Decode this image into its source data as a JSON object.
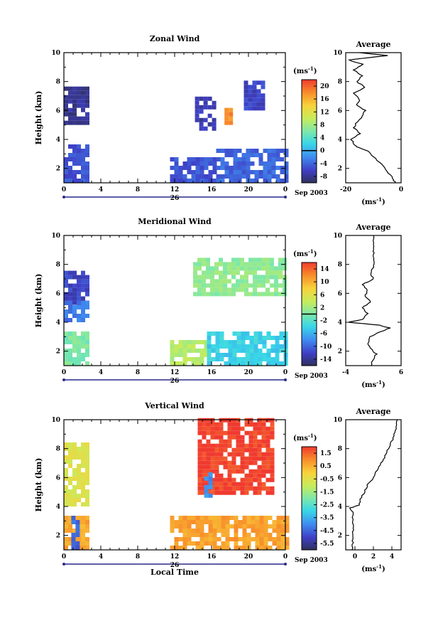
{
  "chart_data": [
    {
      "type": "heatmap",
      "title": "Zonal Wind",
      "ylabel": "Height (km)",
      "xlim": [
        0,
        24
      ],
      "ylim": [
        1,
        10
      ],
      "xticks": [
        "0",
        "4",
        "8",
        "12",
        "16",
        "20",
        "0"
      ],
      "xtick_values": [
        0,
        4,
        8,
        12,
        16,
        20,
        24
      ],
      "yticks": [
        "2",
        "4",
        "6",
        "8",
        "10"
      ],
      "ytick_values": [
        2,
        4,
        6,
        8,
        10
      ],
      "date_label": "26",
      "month_label": "Sep 2003",
      "colorbar": {
        "unit": "(ms",
        "unit_exp": "-1",
        "unit_close": ")",
        "ticks": [
          "20",
          "16",
          "12",
          "8",
          "4",
          "0",
          "-4",
          "-8"
        ],
        "tick_values": [
          20,
          16,
          12,
          8,
          4,
          0,
          -4,
          -8
        ],
        "range": [
          -10,
          22
        ],
        "zero_line": 0
      },
      "regions": [
        {
          "x": [
            0,
            2.6
          ],
          "y": [
            5.0,
            7.4
          ],
          "v": -8
        },
        {
          "x": [
            0,
            2.6
          ],
          "y": [
            1.0,
            3.4
          ],
          "v": -5
        },
        {
          "x": [
            11.5,
            16.5
          ],
          "y": [
            1.0,
            2.5
          ],
          "v": -5
        },
        {
          "x": [
            16.5,
            24
          ],
          "y": [
            1.0,
            3.2
          ],
          "v": -4
        },
        {
          "x": [
            14.2,
            16.2
          ],
          "y": [
            4.6,
            6.8
          ],
          "v": -7
        },
        {
          "x": [
            19.5,
            21.5
          ],
          "y": [
            6.0,
            7.8
          ],
          "v": -6
        },
        {
          "x": [
            17.4,
            17.9
          ],
          "y": [
            5.0,
            6.0
          ],
          "v": 18
        }
      ],
      "average": {
        "title": "Average",
        "xlabel": "(ms",
        "xlabel_exp": "-1",
        "xlabel_close": ")",
        "xticks": [
          "-20",
          "0"
        ],
        "xtick_values": [
          -20,
          0
        ],
        "xlim": [
          -20,
          0
        ],
        "yticks": [
          "2",
          "4",
          "6",
          "8",
          "10"
        ],
        "ytick_values": [
          2,
          4,
          6,
          8,
          10
        ],
        "profile_y": [
          1.0,
          1.3,
          1.8,
          2.3,
          2.8,
          3.2,
          3.5,
          3.7,
          4.0,
          4.4,
          4.8,
          5.2,
          5.6,
          6.0,
          6.4,
          6.8,
          7.2,
          7.6,
          8.0,
          8.4,
          8.8,
          9.2,
          9.5,
          9.8,
          10.0
        ],
        "profile_x": [
          -2,
          -3,
          -5,
          -7,
          -10,
          -12,
          -16,
          -17,
          -18,
          -15,
          -17,
          -16,
          -14,
          -13,
          -16,
          -15,
          -17,
          -13,
          -16,
          -14,
          -17,
          -14,
          -19,
          -5,
          -15
        ]
      }
    },
    {
      "type": "heatmap",
      "title": "Meridional Wind",
      "ylabel": "Height (km)",
      "xlim": [
        0,
        24
      ],
      "ylim": [
        1,
        10
      ],
      "xticks": [
        "0",
        "4",
        "8",
        "12",
        "16",
        "20",
        "0"
      ],
      "xtick_values": [
        0,
        4,
        8,
        12,
        16,
        20,
        24
      ],
      "yticks": [
        "2",
        "4",
        "6",
        "8",
        "10"
      ],
      "ytick_values": [
        2,
        4,
        6,
        8,
        10
      ],
      "date_label": "26",
      "month_label": "Sep 2003",
      "colorbar": {
        "unit": "(ms",
        "unit_exp": "-1",
        "unit_close": ")",
        "ticks": [
          "14",
          "10",
          "6",
          "2",
          "-2",
          "-6",
          "-10",
          "-14"
        ],
        "tick_values": [
          14,
          10,
          6,
          2,
          -2,
          -6,
          -10,
          -14
        ],
        "range": [
          -16,
          16
        ],
        "zero_line": 0
      },
      "regions": [
        {
          "x": [
            0,
            2.6
          ],
          "y": [
            5.2,
            7.4
          ],
          "v": -12
        },
        {
          "x": [
            0,
            2.6
          ],
          "y": [
            4.0,
            5.2
          ],
          "v": -9
        },
        {
          "x": [
            0,
            2.6
          ],
          "y": [
            1.0,
            3.3
          ],
          "v": 0
        },
        {
          "x": [
            11.5,
            15.5
          ],
          "y": [
            1.0,
            2.6
          ],
          "v": 3
        },
        {
          "x": [
            15.5,
            24
          ],
          "y": [
            1.0,
            3.2
          ],
          "v": -4
        },
        {
          "x": [
            14.0,
            24
          ],
          "y": [
            5.8,
            8.2
          ],
          "v": 1
        }
      ],
      "average": {
        "title": "Average",
        "xlabel": "(ms",
        "xlabel_exp": "-1",
        "xlabel_close": ")",
        "xticks": [
          "-4",
          "6"
        ],
        "xtick_values": [
          -4,
          6
        ],
        "xlim": [
          -4,
          6
        ],
        "yticks": [
          "2",
          "4",
          "6",
          "8",
          "10"
        ],
        "ytick_values": [
          2,
          4,
          6,
          8,
          10
        ],
        "profile_y": [
          1.0,
          1.4,
          1.8,
          2.2,
          2.6,
          3.0,
          3.3,
          3.6,
          3.8,
          4.0,
          4.2,
          4.6,
          5.0,
          5.4,
          5.8,
          6.2,
          6.6,
          7.0,
          7.4,
          7.8,
          8.2,
          8.6,
          9.0,
          9.5,
          10.0
        ],
        "profile_x": [
          0.5,
          1.0,
          1.5,
          0.5,
          0.0,
          0.5,
          2.0,
          4.0,
          2.0,
          -3.5,
          -1.0,
          0.0,
          -1.0,
          0.5,
          -0.5,
          0.0,
          -1.0,
          1.0,
          0.5,
          1.0,
          1.0,
          1.0,
          1.0,
          1.0,
          1.0
        ]
      }
    },
    {
      "type": "heatmap",
      "title": "Vertical Wind",
      "xlabel": "Local Time",
      "ylabel": "Height (km)",
      "xlim": [
        0,
        24
      ],
      "ylim": [
        1,
        10
      ],
      "xticks": [
        "0",
        "4",
        "8",
        "12",
        "16",
        "20",
        "0"
      ],
      "xtick_values": [
        0,
        4,
        8,
        12,
        16,
        20,
        24
      ],
      "yticks": [
        "2",
        "4",
        "6",
        "8",
        "10"
      ],
      "ytick_values": [
        2,
        4,
        6,
        8,
        10
      ],
      "date_label": "26",
      "month_label": "Sep 2003",
      "colorbar": {
        "unit": "(ms",
        "unit_exp": "-1",
        "unit_close": ")",
        "ticks": [
          "1.5",
          "0.5",
          "-0.5",
          "-1.5",
          "-2.5",
          "-3.5",
          "-4.5",
          "-5.5"
        ],
        "tick_values": [
          1.5,
          0.5,
          -0.5,
          -1.5,
          -2.5,
          -3.5,
          -4.5,
          -5.5
        ],
        "range": [
          -6,
          2
        ],
        "zero_line": null
      },
      "regions": [
        {
          "x": [
            0,
            2.6
          ],
          "y": [
            4.0,
            8.2
          ],
          "v": -0.6
        },
        {
          "x": [
            0,
            2.6
          ],
          "y": [
            1.0,
            3.3
          ],
          "v": 0.6
        },
        {
          "x": [
            0.8,
            1.3
          ],
          "y": [
            1.0,
            3.3
          ],
          "v": -4.5
        },
        {
          "x": [
            11.5,
            24
          ],
          "y": [
            1.0,
            3.2
          ],
          "v": 0.7
        },
        {
          "x": [
            14.5,
            22.5
          ],
          "y": [
            4.8,
            9.9
          ],
          "v": 1.9
        },
        {
          "x": [
            15.2,
            15.8
          ],
          "y": [
            4.6,
            6.2
          ],
          "v": -4
        }
      ],
      "average": {
        "title": "Average",
        "xlabel": "(ms",
        "xlabel_exp": "-1",
        "xlabel_close": ")",
        "xticks": [
          "0",
          "2",
          "4"
        ],
        "xtick_values": [
          0,
          2,
          4
        ],
        "xlim": [
          -1,
          5
        ],
        "yticks": [
          "2",
          "4",
          "6",
          "8",
          "10"
        ],
        "ytick_values": [
          2,
          4,
          6,
          8,
          10
        ],
        "profile_y": [
          1.0,
          1.5,
          2.0,
          2.5,
          3.0,
          3.5,
          3.9,
          4.1,
          4.5,
          5.0,
          5.5,
          6.0,
          6.5,
          7.0,
          7.5,
          8.0,
          8.5,
          9.0,
          9.5,
          10.0
        ],
        "profile_x": [
          -0.3,
          -0.2,
          -0.3,
          -0.2,
          -0.3,
          -0.2,
          -0.5,
          0.5,
          0.6,
          1.0,
          1.4,
          2.0,
          2.4,
          2.8,
          3.3,
          3.6,
          4.0,
          4.2,
          4.5,
          4.6
        ]
      }
    }
  ]
}
